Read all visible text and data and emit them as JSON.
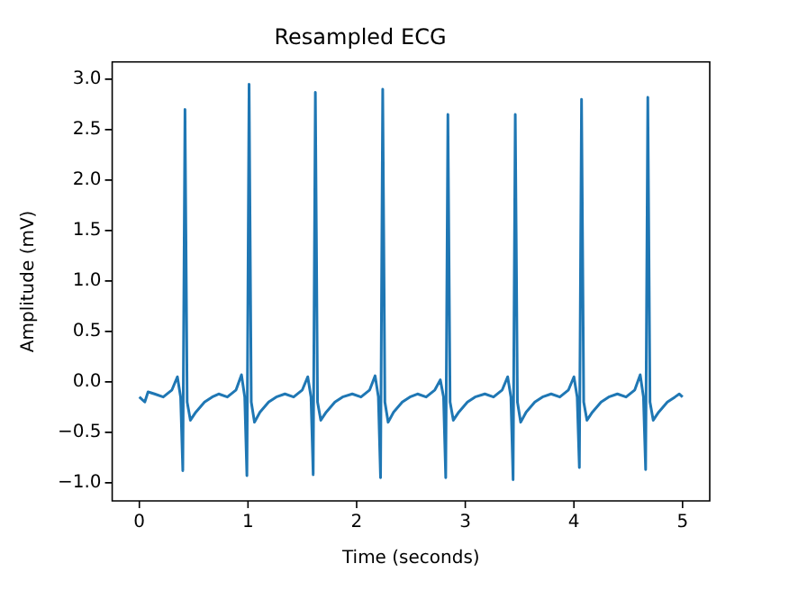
{
  "chart_data": {
    "type": "line",
    "title": "Resampled ECG",
    "xlabel": "Time (seconds)",
    "ylabel": "Amplitude (mV)",
    "x": [
      0,
      0.05,
      0.08,
      0.14,
      0.22,
      0.3,
      0.35,
      0.38,
      0.4,
      0.42,
      0.44,
      0.47,
      0.52,
      0.6,
      0.67,
      0.73,
      0.81,
      0.89,
      0.94,
      0.97,
      0.99,
      1.01,
      1.03,
      1.06,
      1.11,
      1.19,
      1.26,
      1.34,
      1.42,
      1.5,
      1.55,
      1.58,
      1.6,
      1.62,
      1.64,
      1.67,
      1.72,
      1.8,
      1.87,
      1.96,
      2.04,
      2.12,
      2.17,
      2.2,
      2.22,
      2.24,
      2.26,
      2.29,
      2.34,
      2.42,
      2.49,
      2.56,
      2.64,
      2.72,
      2.77,
      2.8,
      2.82,
      2.84,
      2.86,
      2.89,
      2.94,
      3.02,
      3.09,
      3.18,
      3.26,
      3.34,
      3.39,
      3.42,
      3.44,
      3.46,
      3.48,
      3.51,
      3.56,
      3.64,
      3.71,
      3.79,
      3.87,
      3.95,
      4.0,
      4.03,
      4.05,
      4.07,
      4.09,
      4.12,
      4.17,
      4.25,
      4.32,
      4.4,
      4.48,
      4.56,
      4.61,
      4.64,
      4.66,
      4.68,
      4.7,
      4.73,
      4.78,
      4.86,
      4.93,
      4.97,
      5.0
    ],
    "series": [
      {
        "color": "#1f77b4",
        "values": [
          -0.15,
          -0.2,
          -0.1,
          -0.12,
          -0.15,
          -0.08,
          0.05,
          -0.15,
          -0.88,
          2.7,
          -0.2,
          -0.38,
          -0.3,
          -0.2,
          -0.15,
          -0.12,
          -0.15,
          -0.08,
          0.07,
          -0.15,
          -0.93,
          2.95,
          -0.2,
          -0.4,
          -0.3,
          -0.2,
          -0.15,
          -0.12,
          -0.15,
          -0.08,
          0.05,
          -0.15,
          -0.92,
          2.87,
          -0.2,
          -0.38,
          -0.3,
          -0.2,
          -0.15,
          -0.12,
          -0.15,
          -0.08,
          0.06,
          -0.15,
          -0.95,
          2.9,
          -0.2,
          -0.4,
          -0.3,
          -0.2,
          -0.15,
          -0.12,
          -0.15,
          -0.08,
          0.02,
          -0.15,
          -0.95,
          2.65,
          -0.2,
          -0.38,
          -0.3,
          -0.2,
          -0.15,
          -0.12,
          -0.15,
          -0.08,
          0.05,
          -0.15,
          -0.97,
          2.65,
          -0.2,
          -0.4,
          -0.3,
          -0.2,
          -0.15,
          -0.12,
          -0.15,
          -0.08,
          0.05,
          -0.15,
          -0.85,
          2.8,
          -0.2,
          -0.38,
          -0.3,
          -0.2,
          -0.15,
          -0.12,
          -0.15,
          -0.08,
          0.07,
          -0.15,
          -0.87,
          2.82,
          -0.2,
          -0.38,
          -0.3,
          -0.2,
          -0.15,
          -0.12,
          -0.15
        ]
      }
    ],
    "xlim": [
      -0.25,
      5.25
    ],
    "xticks": [
      0,
      1,
      2,
      3,
      4,
      5
    ],
    "ylim": [
      -1.18,
      3.17
    ],
    "yticks": [
      {
        "value": -1,
        "label": "−1.0"
      },
      {
        "value": -0.5,
        "label": "−0.5"
      },
      {
        "value": 0,
        "label": "0.0"
      },
      {
        "value": 0.5,
        "label": "0.5"
      },
      {
        "value": 1,
        "label": "1.0"
      },
      {
        "value": 1.5,
        "label": "1.5"
      },
      {
        "value": 2,
        "label": "2.0"
      },
      {
        "value": 2.5,
        "label": "2.5"
      },
      {
        "value": 3,
        "label": "3.0"
      }
    ],
    "grid": false,
    "legend": false
  }
}
